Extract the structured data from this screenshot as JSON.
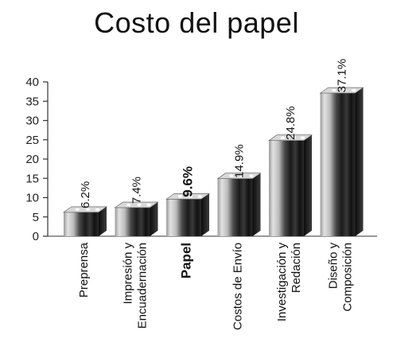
{
  "chart_data": {
    "type": "bar",
    "title": "Costo del papel",
    "xlabel": "",
    "ylabel": "",
    "ylim": [
      0,
      40
    ],
    "yticks": [
      0,
      5,
      10,
      15,
      20,
      25,
      30,
      35,
      40
    ],
    "grid": false,
    "categories": [
      [
        "Preprensa"
      ],
      [
        "Impresión y",
        "Encuadernación"
      ],
      [
        "Papel"
      ],
      [
        "Costos de Envío"
      ],
      [
        "Investigación y",
        "Redación"
      ],
      [
        "Diseño y",
        "Composición"
      ]
    ],
    "values": [
      6.2,
      7.4,
      9.6,
      14.9,
      24.8,
      37.1
    ],
    "data_labels": [
      "6.2%",
      "7.4%",
      "9.6%",
      "14.9%",
      "24.8%",
      "37.1%"
    ],
    "highlight_index": 2
  }
}
